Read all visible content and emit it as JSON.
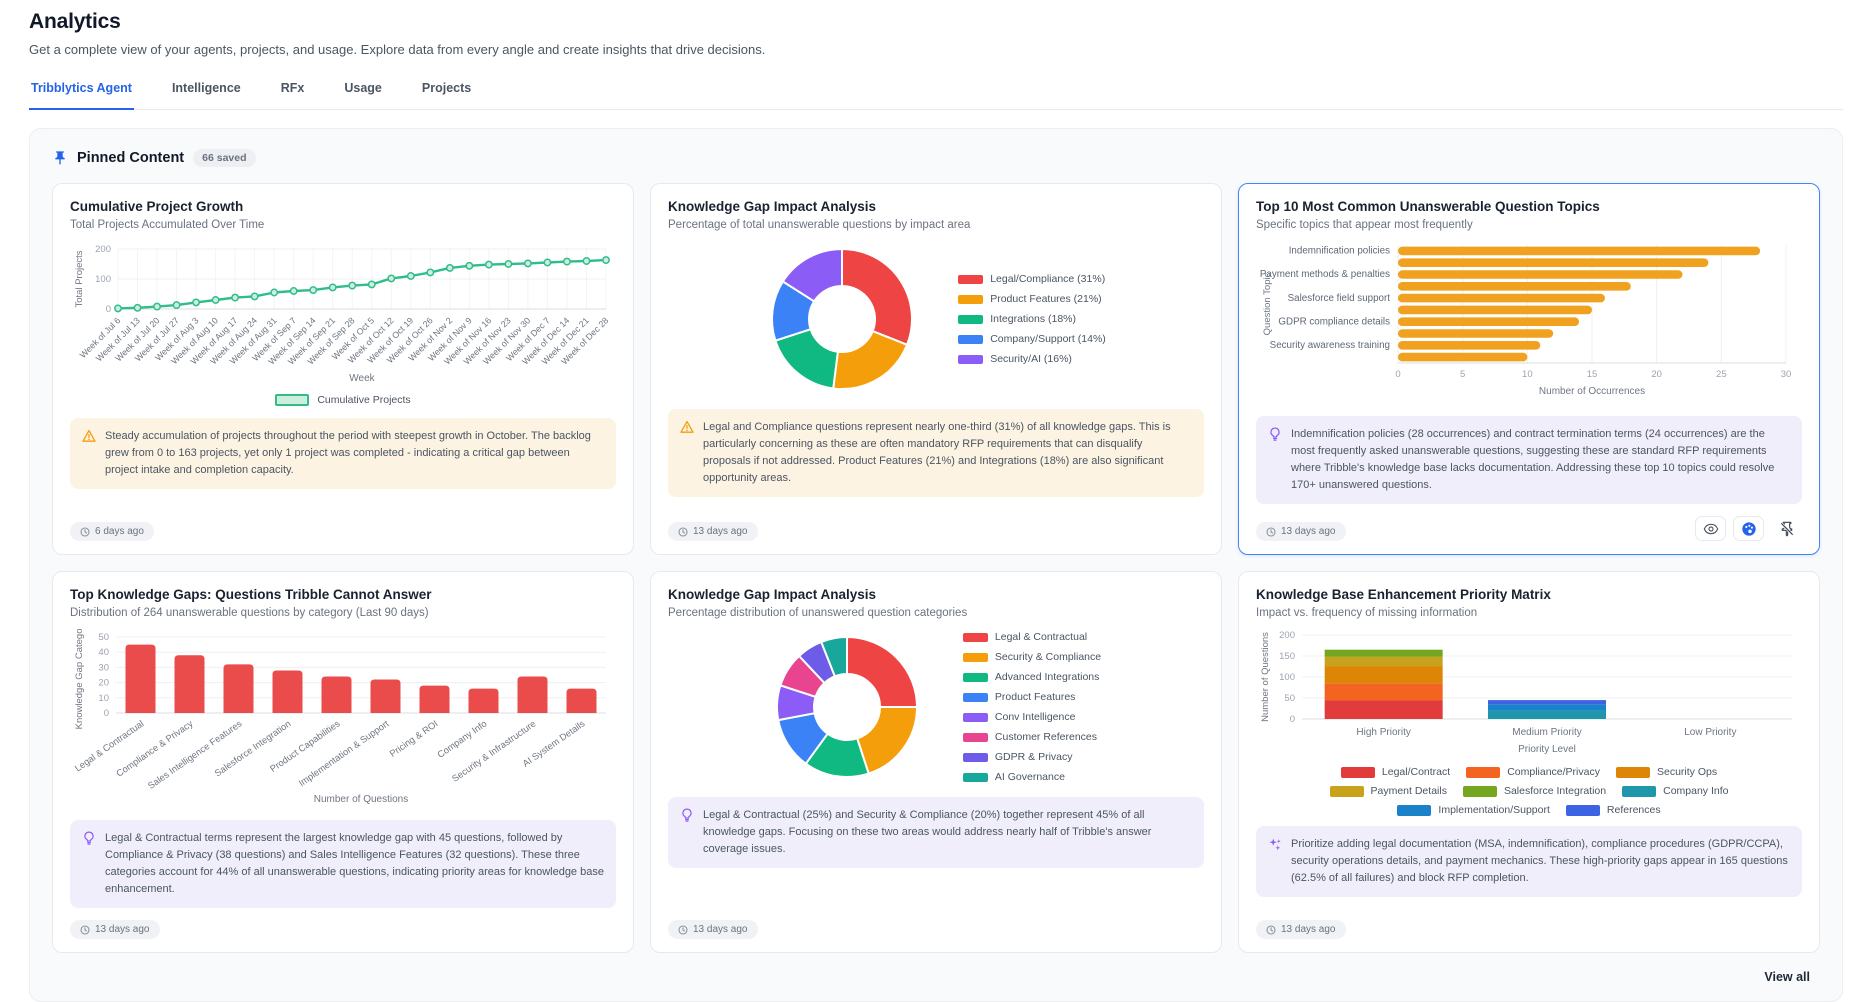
{
  "page": {
    "title": "Analytics",
    "subtitle": "Get a complete view of your agents, projects, and usage. Explore data from every angle and create insights that drive decisions.",
    "tabs": [
      {
        "label": "Tribblytics Agent",
        "active": true
      },
      {
        "label": "Intelligence",
        "active": false
      },
      {
        "label": "RFx",
        "active": false
      },
      {
        "label": "Usage",
        "active": false
      },
      {
        "label": "Projects",
        "active": false
      }
    ],
    "view_all_label": "View all"
  },
  "pinned": {
    "title": "Pinned Content",
    "badge": "66 saved"
  },
  "colors": {
    "accent": "#2563eb",
    "selected_border": "#4285f4",
    "line_green": "#2fbd8a",
    "bar_orange": "#f0a11f",
    "bar_red": "#ea4b4b"
  },
  "cards": [
    {
      "title": "Cumulative Project Growth",
      "subtitle": "Total Projects Accumulated Over Time",
      "selected": false,
      "timestamp": "6 days ago",
      "insight": {
        "type": "warning",
        "text": "Steady accumulation of projects throughout the period with steepest growth in October. The backlog grew from 0 to 163 projects, yet only 1 project was completed - indicating a critical gap between project intake and completion capacity."
      },
      "chart_data": {
        "type": "line",
        "title": "Cumulative Project Growth",
        "xlabel": "Week",
        "ylabel": "Total Projects",
        "ylim": [
          0,
          200
        ],
        "yticks": [
          0,
          100,
          200
        ],
        "legend": [
          "Cumulative Projects"
        ],
        "legend_position": "bottom",
        "color": "#2fbd8a",
        "categories": [
          "Week of Jul 6",
          "Week of Jul 13",
          "Week of Jul 20",
          "Week of Jul 27",
          "Week of Aug 3",
          "Week of Aug 10",
          "Week of Aug 17",
          "Week of Aug 24",
          "Week of Aug 31",
          "Week of Sep 7",
          "Week of Sep 14",
          "Week of Sep 21",
          "Week of Sep 28",
          "Week of Oct 5",
          "Week of Oct 12",
          "Week of Oct 19",
          "Week of Oct 26",
          "Week of Nov 2",
          "Week of Nov 9",
          "Week of Nov 16",
          "Week of Nov 23",
          "Week of Nov 30",
          "Week of Dec 7",
          "Week of Dec 14",
          "Week of Dec 21",
          "Week of Dec 28"
        ],
        "values": [
          2,
          4,
          8,
          13,
          22,
          30,
          38,
          42,
          55,
          60,
          63,
          72,
          78,
          82,
          102,
          110,
          122,
          137,
          144,
          148,
          150,
          152,
          155,
          158,
          160,
          163
        ]
      }
    },
    {
      "title": "Knowledge Gap Impact Analysis",
      "subtitle": "Percentage of total unanswerable questions by impact area",
      "selected": false,
      "timestamp": "13 days ago",
      "insight": {
        "type": "warning",
        "text": "Legal and Compliance questions represent nearly one-third (31%) of all knowledge gaps. This is particularly concerning as these are often mandatory RFP requirements that can disqualify proposals if not addressed. Product Features (21%) and Integrations (18%) are also significant opportunity areas."
      },
      "chart_data": {
        "type": "pie",
        "donut": true,
        "legend_position": "right",
        "labels": [
          "Legal/Compliance",
          "Product Features",
          "Integrations",
          "Company/Support",
          "Security/AI"
        ],
        "legend": [
          "Legal/Compliance (31%)",
          "Product Features (21%)",
          "Integrations (18%)",
          "Company/Support (14%)",
          "Security/AI (16%)"
        ],
        "values": [
          31,
          21,
          18,
          14,
          16
        ],
        "colors": [
          "#ef4444",
          "#f59e0b",
          "#10b981",
          "#3b82f6",
          "#8b5cf6"
        ]
      }
    },
    {
      "title": "Top 10 Most Common Unanswerable Question Topics",
      "subtitle": "Specific topics that appear most frequently",
      "selected": true,
      "timestamp": "13 days ago",
      "actions": [
        "eye-icon",
        "palette-icon",
        "unpin-icon"
      ],
      "insight": {
        "type": "bulb",
        "text": "Indemnification policies (28 occurrences) and contract termination terms (24 occurrences) are the most frequently asked unanswerable questions, suggesting these are standard RFP requirements where Tribble's knowledge base lacks documentation. Addressing these top 10 topics could resolve 170+ unanswered questions."
      },
      "chart_data": {
        "type": "bar",
        "orientation": "horizontal",
        "xlabel": "Number of Occurrences",
        "ylabel": "Question Topic",
        "xlim": [
          0,
          30
        ],
        "xticks": [
          0,
          5,
          10,
          15,
          20,
          25,
          30
        ],
        "color": "#f0a11f",
        "note": "only alternating y tick labels are displayed in the UI",
        "categories": [
          "Indemnification policies",
          "",
          "Payment methods & penalties",
          "",
          "Salesforce field support",
          "",
          "GDPR compliance details",
          "",
          "Security awareness training",
          ""
        ],
        "values": [
          28,
          24,
          22,
          18,
          16,
          15,
          14,
          12,
          11,
          10
        ]
      }
    },
    {
      "title": "Top Knowledge Gaps: Questions Tribble Cannot Answer",
      "subtitle": "Distribution of 264 unanswerable questions by category (Last 90 days)",
      "selected": false,
      "timestamp": "13 days ago",
      "insight": {
        "type": "bulb",
        "text": "Legal & Contractual terms represent the largest knowledge gap with 45 questions, followed by Compliance & Privacy (38 questions) and Sales Intelligence Features (32 questions). These three categories account for 44% of all unanswerable questions, indicating priority areas for knowledge base enhancement."
      },
      "chart_data": {
        "type": "bar",
        "orientation": "vertical",
        "xlabel": "Number of Questions",
        "ylabel": "Knowledge Gap Category",
        "ylim": [
          0,
          50
        ],
        "yticks": [
          0,
          10,
          20,
          30,
          40,
          50
        ],
        "color": "#ea4b4b",
        "categories": [
          "Legal & Contractual",
          "Compliance & Privacy",
          "Sales Intelligence Features",
          "Salesforce Integration",
          "Product Capabilities",
          "Implementation & Support",
          "Pricing & ROI",
          "Company Info",
          "Security & Infrastructure",
          "AI System Details"
        ],
        "values": [
          45,
          38,
          32,
          28,
          24,
          22,
          18,
          16,
          24,
          16
        ]
      }
    },
    {
      "title": "Knowledge Gap Impact Analysis",
      "subtitle": "Percentage distribution of unanswered question categories",
      "selected": false,
      "timestamp": "13 days ago",
      "insight": {
        "type": "bulb",
        "text": "Legal & Contractual (25%) and Security & Compliance (20%) together represent 45% of all knowledge gaps. Focusing on these two areas would address nearly half of Tribble's answer coverage issues."
      },
      "chart_data": {
        "type": "pie",
        "donut": true,
        "legend_position": "right",
        "labels": [
          "Legal & Contractual",
          "Security & Compliance",
          "Advanced Integrations",
          "Product Features",
          "Conv Intelligence",
          "Customer References",
          "GDPR & Privacy",
          "AI Governance"
        ],
        "legend": [
          "Legal & Contractual",
          "Security & Compliance",
          "Advanced Integrations",
          "Product Features",
          "Conv Intelligence",
          "Customer References",
          "GDPR & Privacy",
          "AI Governance"
        ],
        "values": [
          25,
          20,
          15,
          12,
          8,
          8,
          6,
          6
        ],
        "colors": [
          "#ef4444",
          "#f59e0b",
          "#10b981",
          "#3b82f6",
          "#8b5cf6",
          "#e8448f",
          "#6d5ce8",
          "#17a89b"
        ]
      }
    },
    {
      "title": "Knowledge Base Enhancement Priority Matrix",
      "subtitle": "Impact vs. frequency of missing information",
      "selected": false,
      "timestamp": "13 days ago",
      "insight": {
        "type": "sparkles",
        "text": "Prioritize adding legal documentation (MSA, indemnification), compliance procedures (GDPR/CCPA), security operations details, and payment mechanics. These high-priority gaps appear in 165 questions (62.5% of all failures) and block RFP completion."
      },
      "chart_data": {
        "type": "bar",
        "stacked": true,
        "xlabel": "Priority Level",
        "ylabel": "Number of Questions",
        "ylim": [
          0,
          200
        ],
        "yticks": [
          0,
          50,
          100,
          150,
          200
        ],
        "legend_position": "bottom",
        "categories": [
          "High Priority",
          "Medium Priority",
          "Low Priority"
        ],
        "series": [
          {
            "name": "Legal/Contract",
            "color": "#e23b3c",
            "values": [
              45,
              0,
              0
            ]
          },
          {
            "name": "Compliance/Privacy",
            "color": "#f2641f",
            "values": [
              40,
              0,
              0
            ]
          },
          {
            "name": "Security Ops",
            "color": "#dd8504",
            "values": [
              40,
              0,
              0
            ]
          },
          {
            "name": "Payment Details",
            "color": "#c8a21b",
            "values": [
              23,
              0,
              0
            ]
          },
          {
            "name": "Salesforce Integration",
            "color": "#74a61f",
            "values": [
              17,
              0,
              0
            ]
          },
          {
            "name": "Company Info",
            "color": "#1e96ab",
            "values": [
              0,
              20,
              0
            ]
          },
          {
            "name": "Implementation/Support",
            "color": "#1a82c8",
            "values": [
              0,
              15,
              0
            ]
          },
          {
            "name": "References",
            "color": "#3c63e3",
            "values": [
              0,
              10,
              0
            ]
          }
        ]
      }
    }
  ]
}
